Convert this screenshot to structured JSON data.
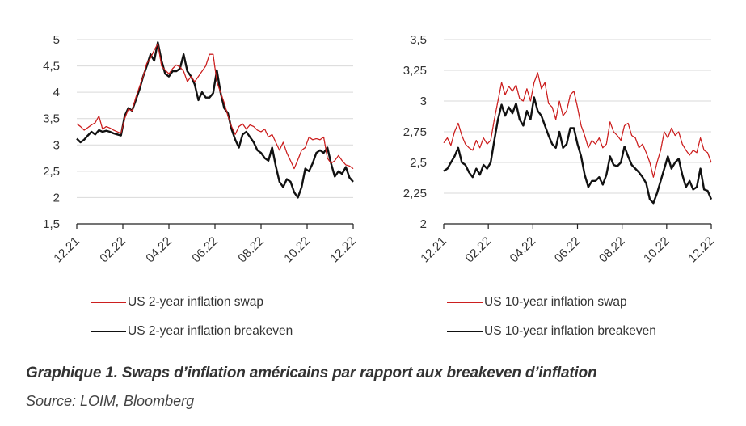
{
  "chart_data": [
    {
      "type": "line",
      "title": "",
      "xlabel": "",
      "ylabel": "",
      "x_tick_labels": [
        "12.21",
        "02.22",
        "04.22",
        "06.22",
        "08.22",
        "10.22",
        "12.22"
      ],
      "y_tick_labels": [
        "1,5",
        "2",
        "2,5",
        "3",
        "3,5",
        "4",
        "4,5",
        "5"
      ],
      "y_ticks": [
        1.5,
        2,
        2.5,
        3,
        3.5,
        4,
        4.5,
        5
      ],
      "ylim": [
        1.5,
        5
      ],
      "x_range": [
        "12.21",
        "12.22"
      ],
      "grid": true,
      "legend_position": "bottom",
      "series": [
        {
          "name": "US 2-year inflation swap",
          "color": "#cc1f1f",
          "values": [
            3.4,
            3.35,
            3.28,
            3.33,
            3.38,
            3.42,
            3.55,
            3.3,
            3.35,
            3.32,
            3.28,
            3.25,
            3.22,
            3.5,
            3.68,
            3.65,
            3.9,
            4.1,
            4.3,
            4.55,
            4.65,
            4.8,
            4.92,
            4.5,
            4.42,
            4.35,
            4.45,
            4.52,
            4.48,
            4.4,
            4.2,
            4.3,
            4.2,
            4.3,
            4.4,
            4.5,
            4.72,
            4.72,
            4.2,
            4.0,
            3.8,
            3.55,
            3.35,
            3.2,
            3.35,
            3.4,
            3.3,
            3.38,
            3.35,
            3.28,
            3.25,
            3.3,
            3.15,
            3.2,
            3.05,
            2.9,
            3.05,
            2.85,
            2.7,
            2.55,
            2.72,
            2.9,
            2.95,
            3.15,
            3.1,
            3.12,
            3.1,
            3.15,
            2.75,
            2.65,
            2.7,
            2.8,
            2.7,
            2.62,
            2.6,
            2.55
          ]
        },
        {
          "name": "US 2-year inflation breakeven",
          "color": "#111111",
          "values": [
            3.12,
            3.05,
            3.1,
            3.18,
            3.25,
            3.2,
            3.28,
            3.25,
            3.27,
            3.25,
            3.22,
            3.2,
            3.18,
            3.55,
            3.7,
            3.65,
            3.85,
            4.05,
            4.3,
            4.5,
            4.72,
            4.6,
            4.95,
            4.6,
            4.35,
            4.3,
            4.4,
            4.4,
            4.45,
            4.72,
            4.4,
            4.3,
            4.15,
            3.85,
            4.0,
            3.9,
            3.9,
            3.98,
            4.42,
            4.0,
            3.7,
            3.6,
            3.3,
            3.1,
            2.95,
            3.2,
            3.25,
            3.15,
            3.05,
            2.9,
            2.85,
            2.75,
            2.7,
            2.95,
            2.6,
            2.3,
            2.2,
            2.35,
            2.3,
            2.1,
            2.0,
            2.2,
            2.55,
            2.5,
            2.65,
            2.85,
            2.9,
            2.85,
            2.95,
            2.65,
            2.4,
            2.5,
            2.45,
            2.58,
            2.38,
            2.3
          ]
        }
      ]
    },
    {
      "type": "line",
      "title": "",
      "xlabel": "",
      "ylabel": "",
      "x_tick_labels": [
        "12.21",
        "02.22",
        "04.22",
        "06.22",
        "08.22",
        "10.22",
        "12.22"
      ],
      "y_tick_labels": [
        "2",
        "2,25",
        "2,5",
        "2,75",
        "3",
        "3,25",
        "3,5"
      ],
      "y_ticks": [
        2,
        2.25,
        2.5,
        2.75,
        3,
        3.25,
        3.5
      ],
      "ylim": [
        2,
        3.5
      ],
      "x_range": [
        "12.21",
        "12.22"
      ],
      "grid": true,
      "legend_position": "bottom",
      "series": [
        {
          "name": "US 10-year inflation swap",
          "color": "#cc1f1f",
          "values": [
            2.66,
            2.7,
            2.64,
            2.75,
            2.82,
            2.72,
            2.65,
            2.62,
            2.6,
            2.68,
            2.62,
            2.7,
            2.65,
            2.68,
            2.85,
            3.0,
            3.15,
            3.05,
            3.12,
            3.08,
            3.13,
            3.02,
            3.0,
            3.1,
            3.0,
            3.15,
            3.23,
            3.1,
            3.15,
            2.98,
            2.95,
            2.85,
            3.0,
            2.88,
            2.92,
            3.05,
            3.08,
            2.95,
            2.8,
            2.72,
            2.62,
            2.68,
            2.65,
            2.7,
            2.62,
            2.65,
            2.83,
            2.75,
            2.72,
            2.68,
            2.8,
            2.82,
            2.72,
            2.7,
            2.62,
            2.65,
            2.58,
            2.5,
            2.38,
            2.5,
            2.6,
            2.75,
            2.7,
            2.78,
            2.72,
            2.75,
            2.65,
            2.6,
            2.56,
            2.6,
            2.58,
            2.7,
            2.6,
            2.58,
            2.5
          ]
        },
        {
          "name": "US 10-year inflation breakeven",
          "color": "#111111",
          "values": [
            2.43,
            2.45,
            2.5,
            2.55,
            2.62,
            2.5,
            2.48,
            2.42,
            2.38,
            2.45,
            2.4,
            2.48,
            2.45,
            2.5,
            2.68,
            2.85,
            2.97,
            2.88,
            2.95,
            2.9,
            2.98,
            2.85,
            2.8,
            2.92,
            2.85,
            3.03,
            2.92,
            2.88,
            2.8,
            2.72,
            2.65,
            2.62,
            2.75,
            2.62,
            2.65,
            2.78,
            2.78,
            2.65,
            2.55,
            2.4,
            2.3,
            2.35,
            2.35,
            2.38,
            2.32,
            2.4,
            2.55,
            2.48,
            2.47,
            2.5,
            2.63,
            2.55,
            2.48,
            2.45,
            2.42,
            2.38,
            2.33,
            2.2,
            2.17,
            2.25,
            2.35,
            2.45,
            2.55,
            2.45,
            2.5,
            2.53,
            2.4,
            2.3,
            2.35,
            2.28,
            2.3,
            2.45,
            2.28,
            2.27,
            2.2
          ]
        }
      ]
    }
  ],
  "legend": {
    "left": [
      "US 2-year inflation swap",
      "US 2-year inflation breakeven"
    ],
    "right": [
      "US 10-year inflation swap",
      "US 10-year inflation breakeven"
    ]
  },
  "caption": "Graphique 1. Swaps d’inflation américains par rapport aux breakeven d’inflation",
  "source": "Source: LOIM, Bloomberg"
}
